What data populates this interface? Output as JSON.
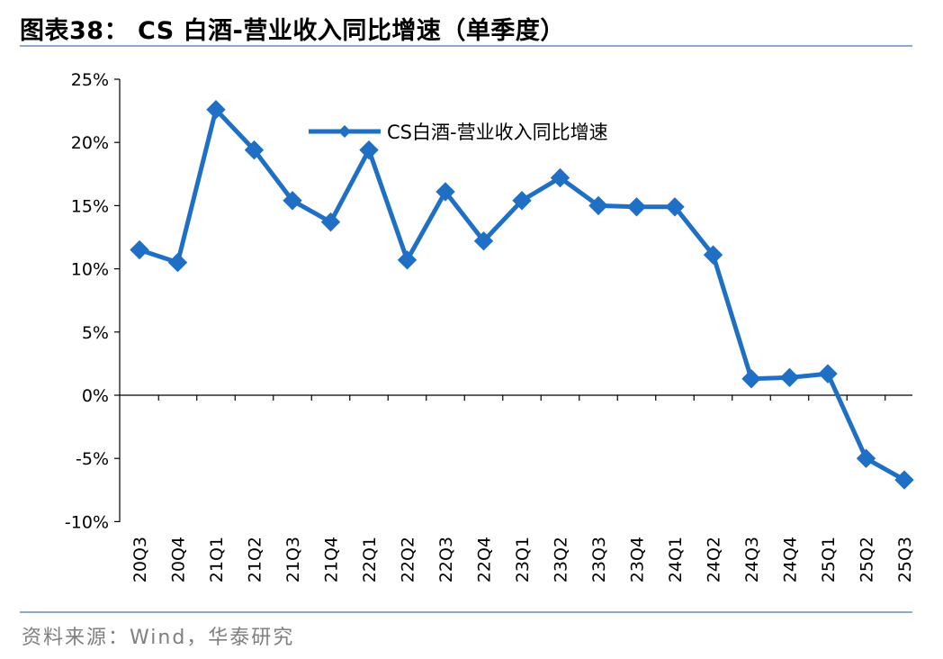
{
  "header": {
    "title": "图表38：  CS 白酒-营业收入同比增速（单季度）"
  },
  "footer": {
    "source": "资料来源：Wind，华泰研究"
  },
  "colors": {
    "series": "#1f6fc4",
    "rule": "#8eaac9",
    "source_text": "#7f7f7f"
  },
  "chart_data": {
    "type": "line",
    "title": "",
    "xlabel": "",
    "ylabel": "",
    "categories": [
      "20Q3",
      "20Q4",
      "21Q1",
      "21Q2",
      "21Q3",
      "21Q4",
      "22Q1",
      "22Q2",
      "22Q3",
      "22Q4",
      "23Q1",
      "23Q2",
      "23Q3",
      "23Q4",
      "24Q1",
      "24Q2",
      "24Q3",
      "24Q4",
      "25Q1",
      "25Q2",
      "25Q3"
    ],
    "series": [
      {
        "name": "CS白酒-营业收入同比增速",
        "marker": "diamond",
        "values": [
          11.5,
          10.5,
          22.6,
          19.4,
          15.4,
          13.7,
          19.4,
          10.7,
          16.1,
          12.2,
          15.4,
          17.2,
          15.0,
          14.9,
          14.9,
          11.1,
          1.3,
          1.4,
          1.7,
          -5.0,
          -6.7
        ]
      }
    ],
    "ylim": [
      -10,
      25
    ],
    "yticks": [
      -10,
      -5,
      0,
      5,
      10,
      15,
      20,
      25
    ],
    "ytick_labels": [
      "-10%",
      "-5%",
      "0%",
      "5%",
      "10%",
      "15%",
      "20%",
      "25%"
    ],
    "grid": false,
    "legend": "top-center"
  }
}
